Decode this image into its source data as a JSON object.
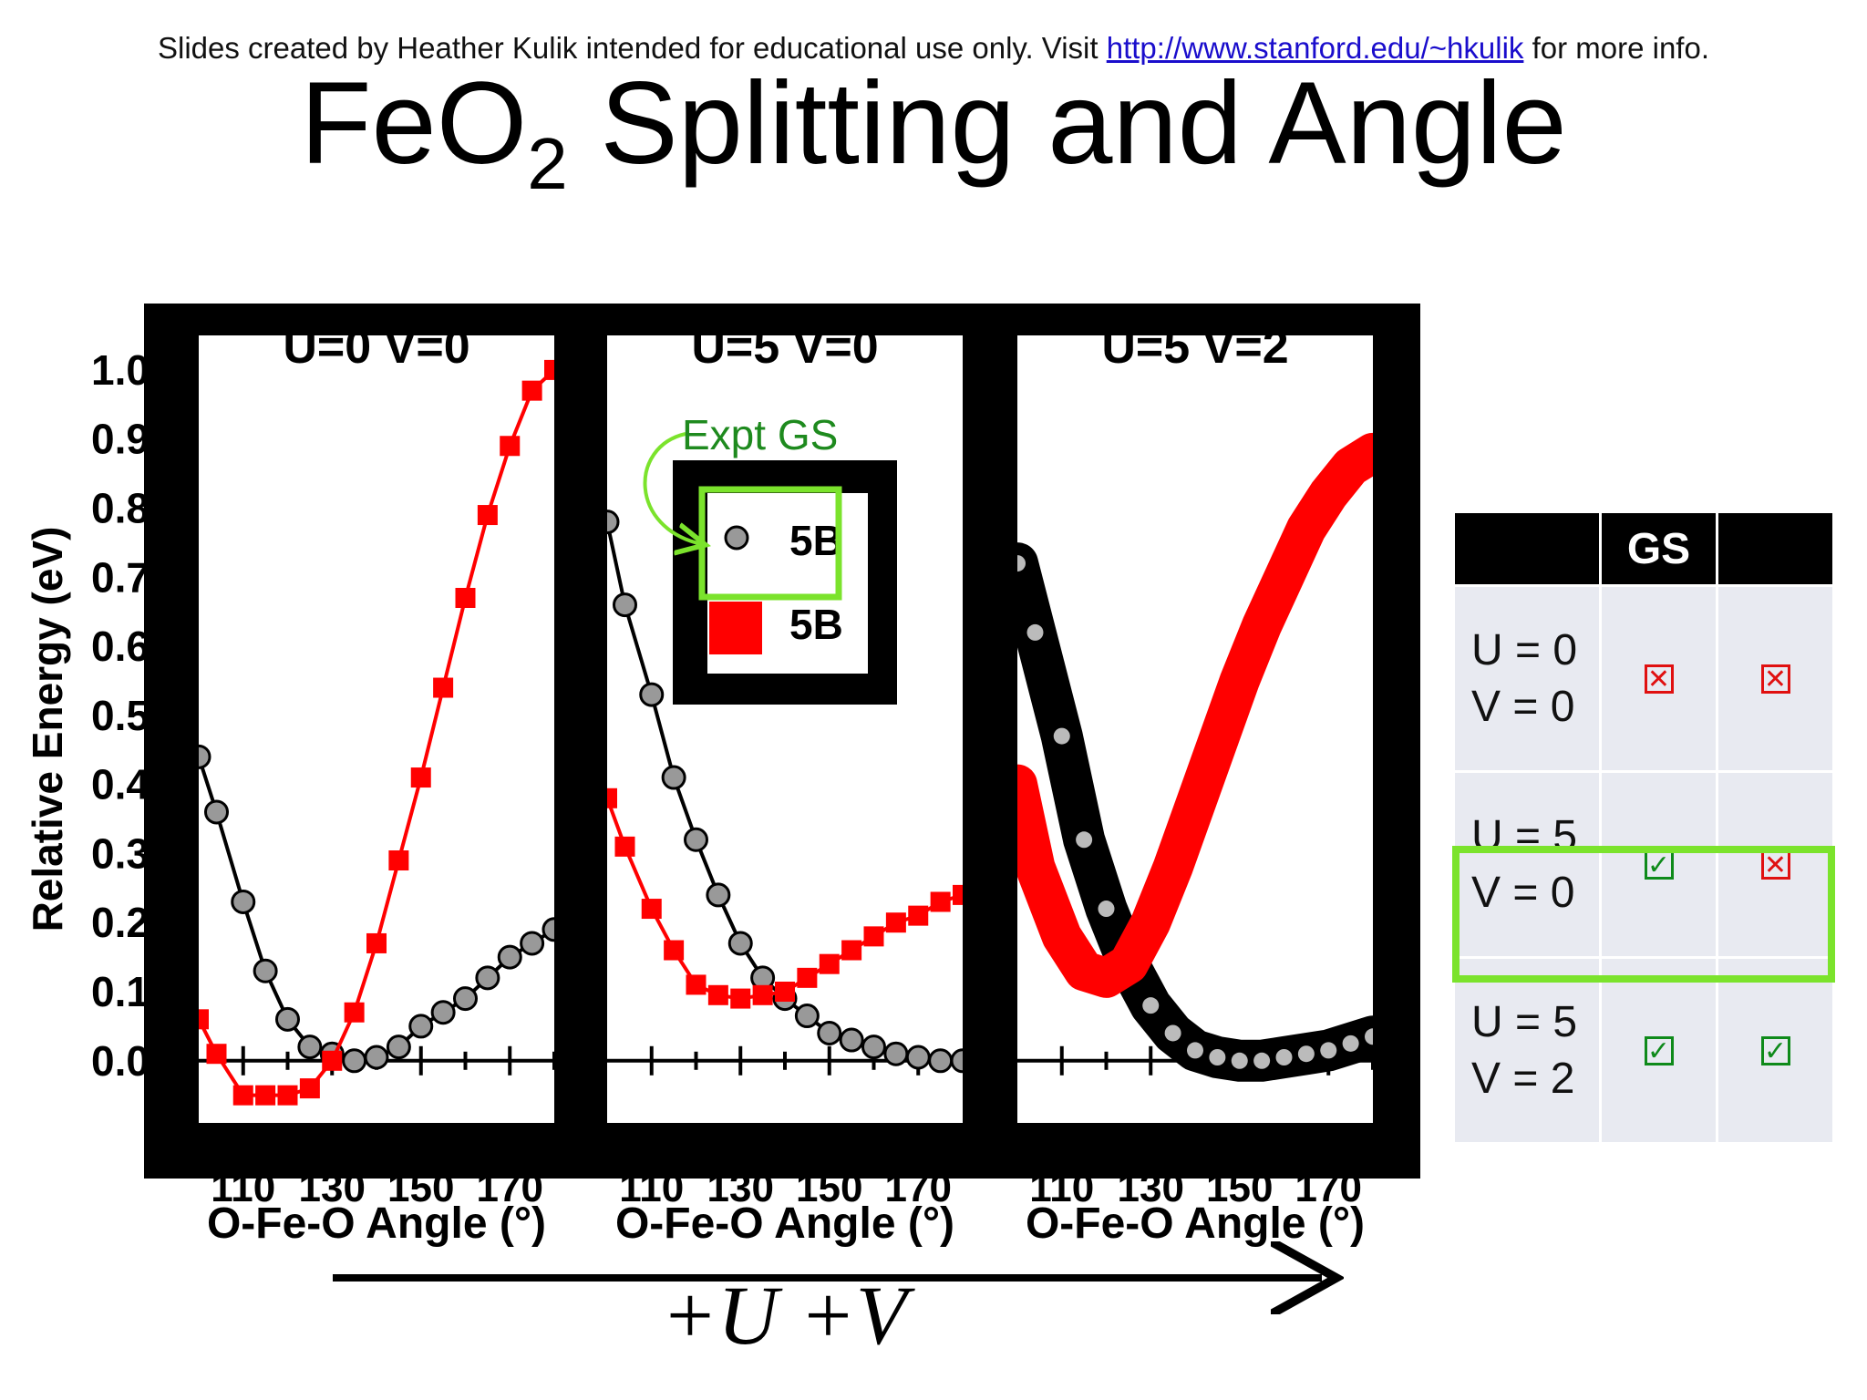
{
  "header": {
    "credit_prefix": "Slides created by Heather Kulik intended for educational use only. Visit ",
    "credit_link": "http://www.stanford.edu/~hkulik",
    "credit_suffix": " for more info.",
    "title_main": "FeO",
    "title_sub": "2",
    "title_rest": " Splitting and Angle"
  },
  "arrow_label": "+U +V",
  "colors": {
    "red": "#ff0000",
    "black": "#000000",
    "green_highlight": "#7be32c",
    "expt_green": "#1e8a1e"
  },
  "chart_data": [
    {
      "type": "line",
      "title": "U=0 V=0",
      "xlabel": "O-Fe-O Angle (°)",
      "ylabel": "Relative Energy (eV)",
      "xlim": [
        100,
        180
      ],
      "ylim": [
        -0.09,
        1.05
      ],
      "x_ticks": [
        "110",
        "130",
        "150",
        "170"
      ],
      "y_ticks": [
        "1.0",
        "0.9",
        "0.8",
        "0.7",
        "0.6",
        "0.5",
        "0.4",
        "0.3",
        "0.2",
        "0.1",
        "0.0"
      ],
      "series": [
        {
          "color": "#000000",
          "marker": "circle",
          "x": [
            100,
            104,
            110,
            115,
            120,
            125,
            130,
            135,
            140,
            145,
            150,
            155,
            160,
            165,
            170,
            175,
            180
          ],
          "y": [
            0.44,
            0.36,
            0.23,
            0.13,
            0.06,
            0.02,
            0.01,
            0.0,
            0.005,
            0.02,
            0.05,
            0.07,
            0.09,
            0.12,
            0.15,
            0.17,
            0.19
          ]
        },
        {
          "color": "#ff0000",
          "marker": "square",
          "x": [
            100,
            104,
            110,
            115,
            120,
            125,
            130,
            135,
            140,
            145,
            150,
            155,
            160,
            165,
            170,
            175,
            180
          ],
          "y": [
            0.06,
            0.01,
            -0.05,
            -0.05,
            -0.05,
            -0.04,
            0.0,
            0.07,
            0.17,
            0.29,
            0.41,
            0.54,
            0.67,
            0.79,
            0.89,
            0.97,
            1.0
          ]
        }
      ]
    },
    {
      "type": "line",
      "title": "U=5 V=0",
      "xlabel": "O-Fe-O Angle (°)",
      "xlim": [
        100,
        180
      ],
      "x_ticks": [
        "110",
        "130",
        "150",
        "170"
      ],
      "legend": {
        "entries": [
          "5B",
          "5B"
        ],
        "annotation": "Expt GS"
      },
      "series": [
        {
          "color": "#000000",
          "marker": "circle",
          "x": [
            100,
            104,
            110,
            115,
            120,
            125,
            130,
            135,
            140,
            145,
            150,
            155,
            160,
            165,
            170,
            175,
            180
          ],
          "y": [
            0.78,
            0.66,
            0.53,
            0.41,
            0.32,
            0.24,
            0.17,
            0.12,
            0.09,
            0.065,
            0.04,
            0.03,
            0.02,
            0.01,
            0.005,
            0.0,
            0.0
          ]
        },
        {
          "color": "#ff0000",
          "marker": "square",
          "x": [
            100,
            104,
            110,
            115,
            120,
            125,
            130,
            135,
            140,
            145,
            150,
            155,
            160,
            165,
            170,
            175,
            180
          ],
          "y": [
            0.38,
            0.31,
            0.22,
            0.16,
            0.11,
            0.095,
            0.09,
            0.095,
            0.1,
            0.12,
            0.14,
            0.16,
            0.18,
            0.2,
            0.21,
            0.23,
            0.24
          ]
        }
      ]
    },
    {
      "type": "line",
      "title": "U=5 V=2",
      "xlabel": "O-Fe-O Angle (°)",
      "xlim": [
        100,
        180
      ],
      "x_ticks": [
        "110",
        "130",
        "150",
        "170"
      ],
      "series": [
        {
          "color": "#000000",
          "marker": "circle",
          "x": [
            100,
            104,
            110,
            115,
            120,
            125,
            130,
            135,
            140,
            145,
            150,
            155,
            160,
            165,
            170,
            175,
            180
          ],
          "y": [
            0.72,
            0.62,
            0.47,
            0.32,
            0.22,
            0.14,
            0.08,
            0.04,
            0.015,
            0.005,
            0.0,
            0.0,
            0.005,
            0.01,
            0.015,
            0.025,
            0.035
          ]
        },
        {
          "color": "#ff0000",
          "marker": "square",
          "x": [
            100,
            104,
            110,
            115,
            120,
            125,
            130,
            135,
            140,
            145,
            150,
            155,
            160,
            165,
            170,
            175,
            180
          ],
          "y": [
            0.4,
            0.28,
            0.18,
            0.13,
            0.12,
            0.14,
            0.2,
            0.28,
            0.37,
            0.46,
            0.55,
            0.63,
            0.7,
            0.77,
            0.82,
            0.86,
            0.88
          ]
        }
      ]
    }
  ],
  "gs_table": {
    "header_blank": "",
    "header_gs": "GS",
    "header_third": "",
    "rows": [
      {
        "label": "U = 0 V = 0",
        "col1": "no",
        "col2": "no"
      },
      {
        "label": "U = 5 V = 0",
        "col1": "yes",
        "col2": "no"
      },
      {
        "label": "U = 5 V = 2",
        "col1": "yes",
        "col2": "yes"
      }
    ]
  }
}
